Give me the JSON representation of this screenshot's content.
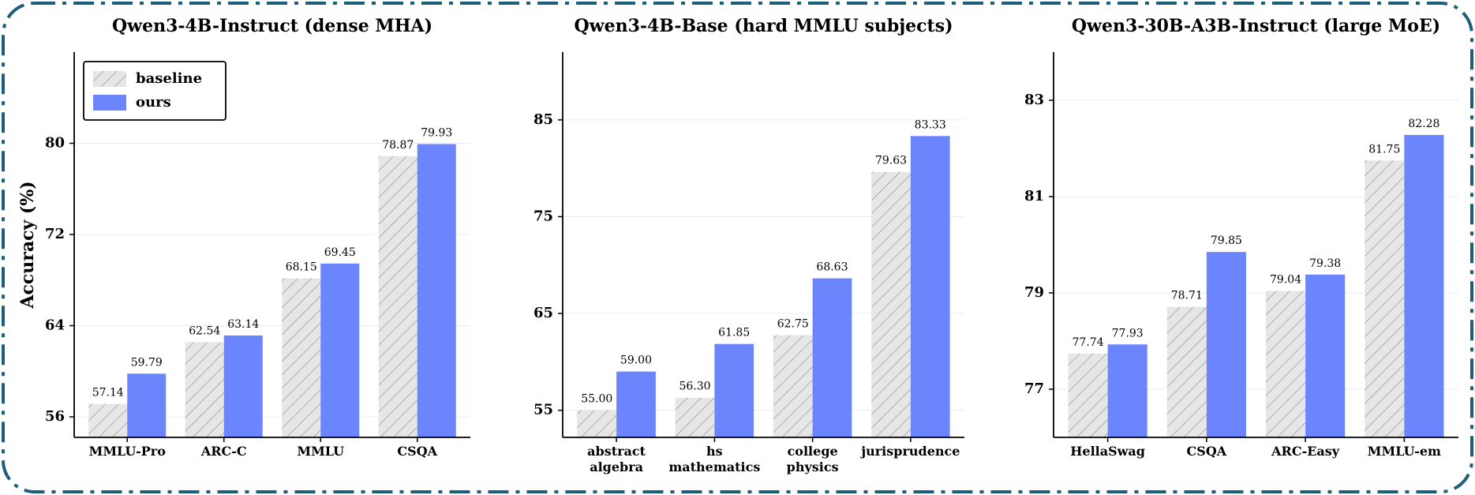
{
  "chart_data": [
    {
      "type": "bar",
      "title": "Qwen3-4B-Instruct  (dense MHA)",
      "ylabel": "Accuracy (%)",
      "categories": [
        "MMLU-Pro",
        "ARC-C",
        "MMLU",
        "CSQA"
      ],
      "series": [
        {
          "name": "baseline",
          "color": "#e6e6e6",
          "hatch": true,
          "values": [
            57.14,
            62.54,
            68.15,
            78.87
          ],
          "value_labels": [
            "57.14",
            "62.54",
            "68.15",
            "78.87"
          ]
        },
        {
          "name": "ours",
          "color": "#6b85fc",
          "hatch": false,
          "values": [
            59.79,
            63.14,
            69.45,
            79.93
          ],
          "value_labels": [
            "59.79",
            "63.14",
            "69.45",
            "79.93"
          ]
        }
      ],
      "ylim": [
        54.2,
        88
      ],
      "yticks": [
        56,
        64,
        72,
        80
      ],
      "grid": true,
      "legend": "upper left"
    },
    {
      "type": "bar",
      "title": "Qwen3-4B-Base  (hard MMLU subjects)",
      "categories": [
        "abstract\nalgebra",
        "hs\nmathematics",
        "college\nphysics",
        "jurisprudence"
      ],
      "series": [
        {
          "name": "baseline",
          "color": "#e6e6e6",
          "hatch": true,
          "values": [
            55.0,
            56.3,
            62.75,
            79.63
          ],
          "value_labels": [
            "55.00",
            "56.30",
            "62.75",
            "79.63"
          ]
        },
        {
          "name": "ours",
          "color": "#6b85fc",
          "hatch": false,
          "values": [
            59.0,
            61.85,
            68.63,
            83.33
          ],
          "value_labels": [
            "59.00",
            "61.85",
            "68.63",
            "83.33"
          ]
        }
      ],
      "ylim": [
        52.2,
        92
      ],
      "yticks": [
        55,
        65,
        75,
        85
      ],
      "grid": true
    },
    {
      "type": "bar",
      "title": "Qwen3-30B-A3B-Instruct  (large MoE)",
      "categories": [
        "HellaSwag",
        "CSQA",
        "ARC-Easy",
        "MMLU-em"
      ],
      "series": [
        {
          "name": "baseline",
          "color": "#e6e6e6",
          "hatch": true,
          "values": [
            77.74,
            78.71,
            79.04,
            81.75
          ],
          "value_labels": [
            "77.74",
            "78.71",
            "79.04",
            "81.75"
          ]
        },
        {
          "name": "ours",
          "color": "#6b85fc",
          "hatch": false,
          "values": [
            77.93,
            79.85,
            79.38,
            82.28
          ],
          "value_labels": [
            "77.93",
            "79.85",
            "79.38",
            "82.28"
          ]
        }
      ],
      "ylim": [
        76,
        84
      ],
      "yticks": [
        77,
        79,
        81,
        83
      ],
      "grid": true
    }
  ]
}
